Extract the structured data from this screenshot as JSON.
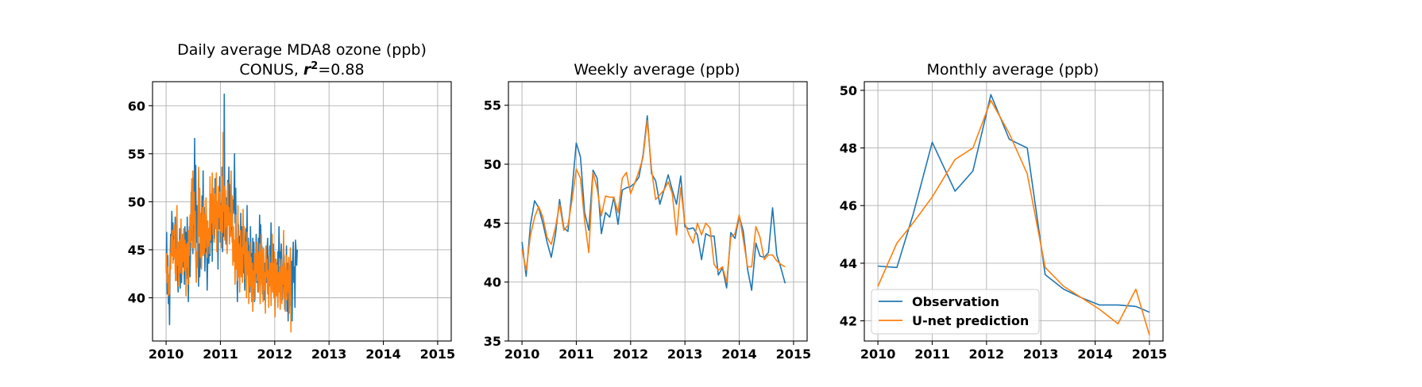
{
  "colors": {
    "observation": "#1f77b4",
    "prediction": "#ff7f0e",
    "grid": "#b0b0b0"
  },
  "chart_data": [
    {
      "type": "line",
      "title": "Daily average MDA8 ozone (ppb)",
      "subtitle_prefix": "CONUS, ",
      "subtitle_r2_symbol": "r",
      "subtitle_r2_sup": "2",
      "subtitle_r2_value": "=0.88",
      "xlim": [
        2010,
        2015
      ],
      "ylim": [
        35.5,
        62.5
      ],
      "xticks": [
        2010,
        2011,
        2012,
        2013,
        2014,
        2015
      ],
      "xtick_labels": [
        "2010",
        "2011",
        "2012",
        "2013",
        "2014",
        "2015"
      ],
      "yticks": [
        40,
        45,
        50,
        55,
        60
      ],
      "ytick_labels": [
        "40",
        "45",
        "50",
        "55",
        "60"
      ],
      "grid": true,
      "series": [
        {
          "key": "observation",
          "step": 0.0105,
          "values": [
            43.0,
            46.8,
            40.4,
            44.4,
            39.4,
            41.6,
            37.2,
            43.4,
            46.6,
            44.8,
            49.0,
            45.6,
            47.8,
            44.0,
            46.4,
            45.0,
            48.4,
            41.8,
            44.6,
            46.6,
            43.0,
            40.6,
            42.4,
            44.6,
            47.2,
            41.0,
            45.8,
            41.6,
            44.4,
            46.6,
            43.2,
            45.6,
            41.4,
            47.4,
            44.4,
            46.8,
            42.0,
            48.4,
            43.8,
            39.6,
            44.4,
            47.4,
            42.2,
            45.6,
            51.0,
            46.0,
            48.2,
            44.6,
            52.4,
            48.6,
            56.6,
            47.4,
            53.8,
            45.8,
            49.6,
            44.0,
            48.2,
            41.2,
            45.6,
            42.2,
            46.4,
            43.2,
            45.2,
            50.6,
            46.8,
            53.2,
            44.6,
            49.4,
            42.8,
            47.0,
            44.8,
            46.0,
            40.8,
            44.2,
            46.8,
            43.6,
            47.2,
            44.4,
            49.2,
            45.8,
            48.6,
            43.8,
            51.2,
            47.4,
            49.6,
            46.2,
            52.4,
            48.0,
            50.2,
            46.4,
            48.8,
            43.0,
            50.4,
            47.2,
            52.6,
            45.8,
            49.8,
            46.6,
            53.6,
            44.8,
            48.2,
            46.4,
            61.2,
            48.8,
            51.0,
            45.6,
            50.4,
            47.8,
            52.2,
            48.4,
            53.6,
            49.2,
            46.8,
            51.8,
            47.2,
            48.6,
            45.8,
            50.2,
            48.8,
            49.6,
            55.0,
            47.8,
            51.4,
            44.6,
            46.2,
            39.6,
            44.2,
            47.6,
            43.8,
            46.4,
            42.8,
            48.8,
            44.6,
            47.4,
            43.2,
            46.4,
            42.6,
            45.8,
            40.8,
            44.2,
            47.2,
            41.8,
            49.6,
            43.0,
            46.2,
            41.6,
            45.4,
            40.6,
            47.4,
            43.0,
            44.6,
            41.0,
            46.2,
            42.8,
            45.8,
            39.6,
            44.4,
            42.2,
            46.6,
            41.6,
            44.2,
            40.6,
            46.2,
            43.8,
            48.6,
            44.8,
            47.6,
            42.8,
            45.4,
            40.4,
            44.4,
            42.6,
            39.8,
            43.6,
            42.2,
            45.0,
            41.6,
            44.8,
            46.2,
            42.6,
            43.6,
            41.2,
            45.4,
            43.6,
            47.8,
            43.2,
            46.6,
            42.8,
            45.6,
            41.0,
            44.6,
            38.8,
            44.0,
            42.2,
            43.6,
            40.8,
            44.8,
            42.2,
            47.4,
            44.2,
            44.8,
            41.8,
            45.6,
            43.0,
            39.8,
            42.4,
            41.2,
            44.4,
            38.8,
            43.0,
            40.2,
            45.4,
            38.6,
            43.6,
            37.6,
            42.4,
            40.0,
            43.4,
            39.2,
            42.6,
            43.8,
            37.6,
            44.0,
            45.8,
            41.6,
            43.2,
            39.0,
            46.0,
            44.8,
            43.4,
            45.0
          ]
        },
        {
          "key": "prediction",
          "step": 0.0105,
          "values": [
            42.6,
            44.6,
            41.6,
            43.2,
            40.2,
            42.4,
            40.4,
            44.6,
            43.0,
            46.4,
            44.4,
            47.0,
            43.6,
            46.0,
            44.2,
            47.6,
            42.6,
            45.0,
            41.8,
            49.6,
            43.4,
            45.8,
            41.2,
            44.2,
            46.0,
            42.6,
            48.2,
            44.0,
            42.4,
            46.6,
            43.8,
            47.2,
            42.8,
            46.0,
            44.6,
            40.2,
            45.6,
            43.2,
            45.8,
            41.4,
            47.0,
            44.4,
            48.6,
            45.8,
            49.6,
            52.4,
            45.2,
            53.2,
            47.6,
            51.0,
            45.2,
            49.0,
            44.2,
            41.6,
            44.8,
            43.2,
            48.6,
            53.6,
            46.4,
            51.4,
            44.2,
            48.8,
            43.0,
            46.2,
            49.4,
            44.4,
            50.2,
            44.6,
            48.6,
            45.2,
            50.4,
            47.6,
            44.2,
            48.0,
            45.4,
            47.2,
            44.6,
            52.6,
            46.0,
            50.8,
            47.8,
            53.0,
            46.6,
            51.4,
            45.8,
            49.2,
            50.8,
            47.2,
            53.0,
            44.8,
            50.0,
            47.0,
            51.6,
            48.4,
            51.0,
            47.0,
            49.6,
            45.2,
            52.6,
            46.8,
            57.2,
            49.0,
            51.6,
            46.0,
            51.2,
            47.4,
            49.6,
            44.6,
            52.0,
            47.6,
            49.4,
            45.6,
            48.8,
            46.4,
            53.2,
            47.4,
            50.6,
            43.4,
            47.4,
            43.8,
            46.0,
            41.4,
            48.6,
            43.0,
            46.2,
            41.8,
            49.6,
            42.2,
            45.6,
            40.6,
            43.8,
            47.0,
            42.2,
            45.2,
            41.6,
            49.2,
            44.6,
            47.4,
            43.4,
            42.0,
            45.8,
            40.0,
            46.8,
            42.4,
            44.8,
            39.4,
            43.0,
            45.8,
            41.2,
            44.2,
            39.6,
            43.6,
            38.6,
            42.8,
            41.0,
            44.6,
            39.8,
            44.6,
            42.6,
            45.8,
            41.8,
            44.8,
            40.6,
            43.4,
            45.6,
            39.4,
            43.0,
            46.6,
            41.4,
            45.0,
            39.6,
            45.2,
            40.8,
            42.6,
            38.4,
            45.4,
            42.2,
            44.0,
            40.4,
            42.8,
            39.0,
            44.4,
            41.6,
            43.6,
            39.2,
            42.4,
            46.6,
            40.6,
            43.6,
            40.0,
            44.8,
            38.0,
            42.4,
            44.0,
            40.2,
            43.4,
            39.0,
            42.6,
            40.6,
            43.2,
            38.8,
            41.6,
            44.0,
            39.4,
            43.2,
            41.4,
            47.0,
            40.0,
            43.6,
            38.6,
            41.8,
            44.4,
            39.8,
            42.8,
            40.6,
            44.2,
            38.4,
            42.0,
            45.2,
            36.4
          ]
        }
      ]
    },
    {
      "type": "line",
      "title": "Weekly average (ppb)",
      "xlim": [
        2010,
        2015
      ],
      "ylim": [
        35,
        57
      ],
      "xticks": [
        2010,
        2011,
        2012,
        2013,
        2014,
        2015
      ],
      "xtick_labels": [
        "2010",
        "2011",
        "2012",
        "2013",
        "2014",
        "2015"
      ],
      "yticks": [
        35,
        40,
        45,
        50,
        55
      ],
      "ytick_labels": [
        "35",
        "40",
        "45",
        "50",
        "55"
      ],
      "grid": true,
      "series": [
        {
          "key": "observation",
          "step": 0.0769,
          "values": [
            43.4,
            40.5,
            44.8,
            46.9,
            46.3,
            45.0,
            43.4,
            42.1,
            44.0,
            47.0,
            44.6,
            44.3,
            47.9,
            51.8,
            50.6,
            45.9,
            44.4,
            49.5,
            48.8,
            44.1,
            45.9,
            45.5,
            47.2,
            44.9,
            47.8,
            48.0,
            48.1,
            48.4,
            48.9,
            50.8,
            54.1,
            49.2,
            48.6,
            46.6,
            47.8,
            49.1,
            47.8,
            46.6,
            49.0,
            44.7,
            44.5,
            44.6,
            44.0,
            41.9,
            44.1,
            43.9,
            43.9,
            40.6,
            41.2,
            39.5,
            44.2,
            43.7,
            45.6,
            44.3,
            41.1,
            39.3,
            43.3,
            42.2,
            42.1,
            42.5,
            46.3,
            42.3,
            41.2,
            39.9
          ]
        },
        {
          "key": "prediction",
          "step": 0.0769,
          "values": [
            42.8,
            41.0,
            43.9,
            45.5,
            46.4,
            45.5,
            43.8,
            43.2,
            44.6,
            46.6,
            44.4,
            44.8,
            47.0,
            49.6,
            48.8,
            45.2,
            42.5,
            49.3,
            47.9,
            45.6,
            47.3,
            47.2,
            47.2,
            45.9,
            48.8,
            49.3,
            47.5,
            48.4,
            49.4,
            50.6,
            53.7,
            49.6,
            47.0,
            47.4,
            47.8,
            48.5,
            47.5,
            44.0,
            48.0,
            45.0,
            44.0,
            43.3,
            45.0,
            44.0,
            45.0,
            44.6,
            41.5,
            41.0,
            41.3,
            40.0,
            43.8,
            44.1,
            45.7,
            43.6,
            41.3,
            41.3,
            44.7,
            43.8,
            41.9,
            42.3,
            42.3,
            41.8,
            41.5,
            41.3
          ]
        }
      ]
    },
    {
      "type": "line",
      "title": "Monthly average (ppb)",
      "xlim": [
        2010,
        2015
      ],
      "ylim": [
        41.3,
        50.3
      ],
      "xticks": [
        2010,
        2011,
        2012,
        2013,
        2014,
        2015
      ],
      "xtick_labels": [
        "2010",
        "2011",
        "2012",
        "2013",
        "2014",
        "2015"
      ],
      "yticks": [
        42,
        44,
        46,
        48,
        50
      ],
      "ytick_labels": [
        "42",
        "44",
        "46",
        "48",
        "50"
      ],
      "grid": true,
      "legend": {
        "placement": "lower-left",
        "entries": [
          "Observation",
          "U-net prediction"
        ]
      },
      "series": [
        {
          "key": "observation",
          "name": "Observation",
          "x": [
            2010.0,
            2010.35,
            2010.65,
            2011.0,
            2011.42,
            2011.75,
            2012.08,
            2012.42,
            2012.75,
            2013.08,
            2013.42,
            2013.75,
            2014.08,
            2014.42,
            2014.75,
            2015.0
          ],
          "values": [
            43.9,
            43.85,
            45.7,
            48.2,
            46.5,
            47.2,
            49.85,
            48.3,
            48.0,
            43.6,
            43.1,
            42.8,
            42.55,
            42.55,
            42.5,
            42.3
          ]
        },
        {
          "key": "prediction",
          "name": "U-net prediction",
          "x": [
            2010.0,
            2010.35,
            2010.65,
            2011.0,
            2011.42,
            2011.75,
            2012.08,
            2012.42,
            2012.75,
            2013.08,
            2013.42,
            2013.75,
            2014.08,
            2014.42,
            2014.75,
            2015.0
          ],
          "values": [
            43.2,
            44.7,
            45.4,
            46.3,
            47.6,
            48.0,
            49.65,
            48.5,
            47.1,
            43.85,
            43.2,
            42.8,
            42.4,
            41.9,
            43.1,
            41.5
          ]
        }
      ]
    }
  ]
}
